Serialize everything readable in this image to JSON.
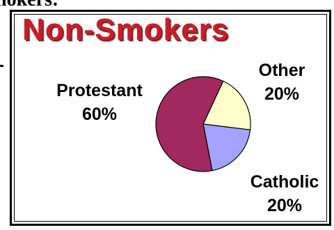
{
  "heading_fragment": "nokers:",
  "chart_data": {
    "type": "pie",
    "title": "Non-Smokers",
    "slices": [
      {
        "label": "Protestant",
        "value": 60,
        "display": "60%",
        "color": "#a3285f"
      },
      {
        "label": "Other",
        "value": 20,
        "display": "20%",
        "color": "#ffffcc"
      },
      {
        "label": "Catholic",
        "value": 20,
        "display": "20%",
        "color": "#a3a3ff"
      }
    ],
    "legend": "none",
    "grid": false
  }
}
